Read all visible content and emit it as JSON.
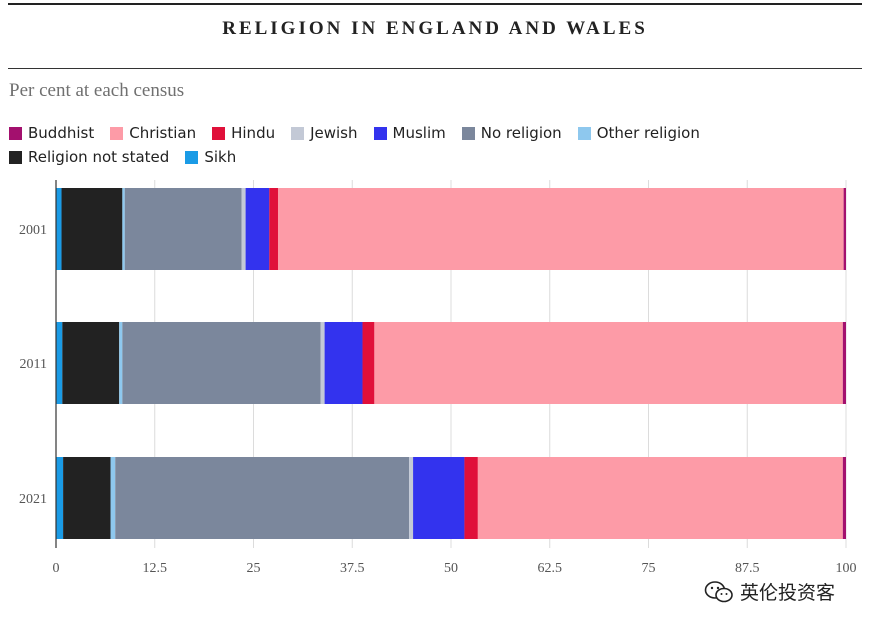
{
  "header": {
    "title": "RELIGION IN ENGLAND AND WALES",
    "subtitle": "Per cent at each census"
  },
  "watermark": {
    "text": "英伦投资客",
    "icon": "wechat-icon"
  },
  "chart_data": {
    "type": "bar",
    "orientation": "horizontal",
    "stacked": true,
    "title": "RELIGION IN ENGLAND AND WALES",
    "subtitle": "Per cent at each census",
    "xlabel": "",
    "ylabel": "",
    "xlim": [
      0,
      100
    ],
    "x_ticks": [
      "0",
      "12.5",
      "25",
      "37.5",
      "50",
      "62.5",
      "75",
      "87.5",
      "100"
    ],
    "x_tick_values": [
      0,
      12.5,
      25,
      37.5,
      50,
      62.5,
      75,
      87.5,
      100
    ],
    "grid": true,
    "legend_position": "top-left",
    "categories": [
      "2001",
      "2011",
      "2021"
    ],
    "series": [
      {
        "name": "Sikh",
        "color": "#1a9be6",
        "values": [
          0.7,
          0.8,
          0.9
        ]
      },
      {
        "name": "Religion not stated",
        "color": "#222222",
        "values": [
          7.7,
          7.2,
          6.0
        ]
      },
      {
        "name": "Other religion",
        "color": "#8ec8ee",
        "values": [
          0.3,
          0.4,
          0.6
        ]
      },
      {
        "name": "No religion",
        "color": "#7b879c",
        "values": [
          14.8,
          25.1,
          37.2
        ]
      },
      {
        "name": "Jewish",
        "color": "#c3c9d6",
        "values": [
          0.5,
          0.5,
          0.5
        ]
      },
      {
        "name": "Muslim",
        "color": "#3333ee",
        "values": [
          3.0,
          4.8,
          6.5
        ]
      },
      {
        "name": "Hindu",
        "color": "#e0103a",
        "values": [
          1.1,
          1.5,
          1.7
        ]
      },
      {
        "name": "Christian",
        "color": "#fd9ba7",
        "values": [
          71.6,
          59.3,
          46.2
        ]
      },
      {
        "name": "Buddhist",
        "color": "#a3106e",
        "values": [
          0.3,
          0.4,
          0.4
        ]
      }
    ],
    "legend_order": [
      "Buddhist",
      "Christian",
      "Hindu",
      "Jewish",
      "Muslim",
      "No religion",
      "Other religion",
      "Religion not stated",
      "Sikh"
    ]
  }
}
